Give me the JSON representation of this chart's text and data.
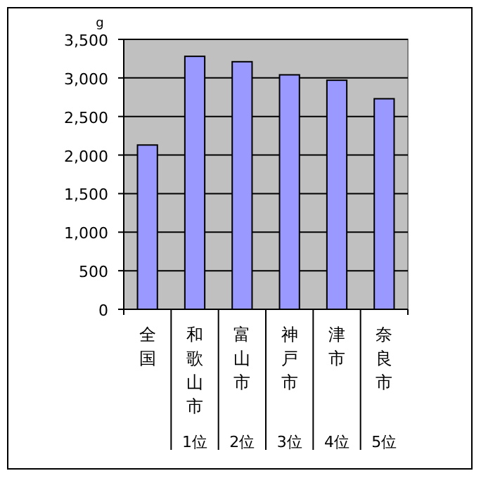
{
  "chart_data": {
    "type": "bar",
    "ylabel": "g",
    "categories": [
      "全国",
      "和歌山市",
      "富山市",
      "神戸市",
      "津市",
      "奈良市"
    ],
    "series": [
      {
        "color": "#9999ff",
        "values": [
          2130,
          3280,
          3210,
          3040,
          2970,
          2730
        ]
      }
    ],
    "ylim": [
      0,
      3500
    ],
    "yticks": [
      0,
      500,
      {
        "value": 1000,
        "label": "1,000"
      },
      {
        "value": 1500,
        "label": "1,500"
      },
      {
        "value": 2000,
        "label": "2,000"
      },
      {
        "value": 2500,
        "label": "2,500"
      },
      {
        "value": 3000,
        "label": "3,000"
      },
      {
        "value": 3500,
        "label": "3,500"
      }
    ],
    "grid": "y",
    "annotations": [
      "1位",
      "2位",
      "3位",
      "4位",
      "5位"
    ]
  }
}
